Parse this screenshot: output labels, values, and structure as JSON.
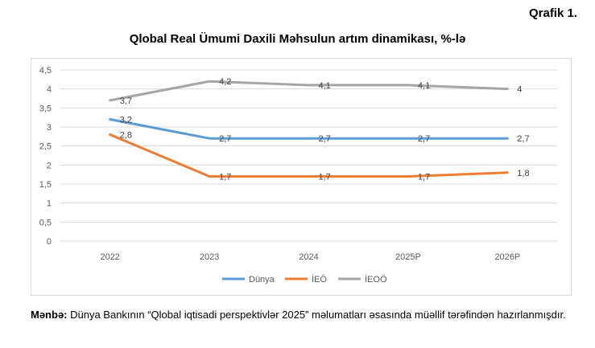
{
  "figure_label": "Qrafik 1.",
  "source": {
    "prefix": "Mənbə:",
    "text": " Dünya Bankının “Qlobal iqtisadi perspektivlər 2025” məlumatları əsasında müəllif tərəfindən hazırlanmışdır."
  },
  "chart_data": {
    "type": "line",
    "title": "Qlobal Real Ümumi Daxili Məhsulun artım dinamikası, %-lə",
    "xlabel": "",
    "ylabel": "",
    "categories": [
      "2022",
      "2023",
      "2024",
      "2025P",
      "2026P"
    ],
    "ylim": [
      0,
      4.5
    ],
    "yticks": [
      "0",
      "0,5",
      "1",
      "1,5",
      "2",
      "2,5",
      "3",
      "3,5",
      "4",
      "4,5"
    ],
    "grid": true,
    "legend_position": "bottom",
    "series": [
      {
        "name": "Dünya",
        "color": "#5b9bd5",
        "values": [
          3.2,
          2.7,
          2.7,
          2.7,
          2.7
        ],
        "labels": [
          "3,2",
          "2,7",
          "2,7",
          "2,7",
          "2,7"
        ]
      },
      {
        "name": "İEÖ",
        "color": "#ed7d31",
        "values": [
          2.8,
          1.7,
          1.7,
          1.7,
          1.8
        ],
        "labels": [
          "2,8",
          "1,7",
          "1,7",
          "1,7",
          "1,8"
        ]
      },
      {
        "name": "İEOÖ",
        "color": "#a5a5a5",
        "values": [
          3.7,
          4.2,
          4.1,
          4.1,
          4.0
        ],
        "labels": [
          "3,7",
          "4,2",
          "4,1",
          "4,1",
          "4"
        ]
      }
    ]
  }
}
